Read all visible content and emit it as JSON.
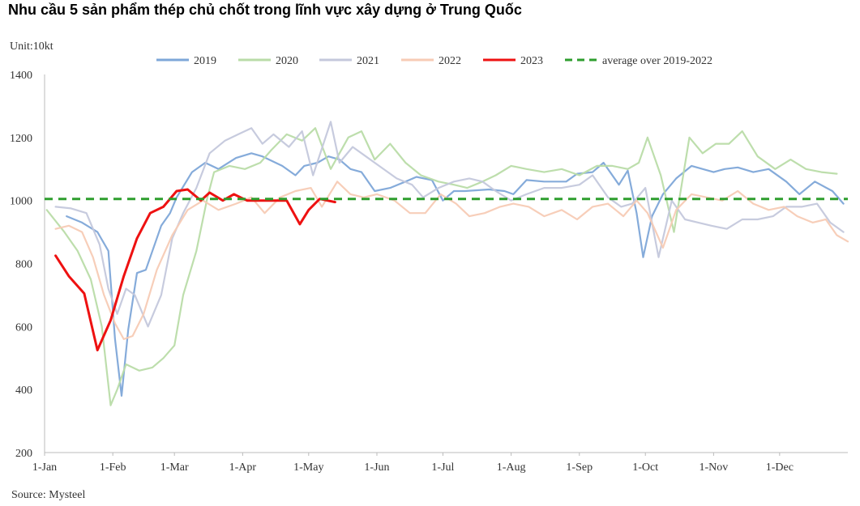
{
  "chart_data": {
    "type": "line",
    "title": "Nhu cầu 5 sản phẩm thép chủ chốt trong lĩnh vực xây dựng ở Trung Quốc",
    "unit_label": "Unit:10kt",
    "source": "Source: Mysteel",
    "ylim": [
      200,
      1400
    ],
    "yticks": [
      200,
      400,
      600,
      800,
      1000,
      1200,
      1400
    ],
    "xlim": [
      1,
      366
    ],
    "xticks": [
      {
        "label": "1-Jan",
        "day": 1
      },
      {
        "label": "1-Feb",
        "day": 32
      },
      {
        "label": "1-Mar",
        "day": 60
      },
      {
        "label": "1-Apr",
        "day": 91
      },
      {
        "label": "1-May",
        "day": 121
      },
      {
        "label": "1-Jun",
        "day": 152
      },
      {
        "label": "1-Jul",
        "day": 182
      },
      {
        "label": "1-Aug",
        "day": 213
      },
      {
        "label": "1-Sep",
        "day": 244
      },
      {
        "label": "1-Oct",
        "day": 274
      },
      {
        "label": "1-Nov",
        "day": 305
      },
      {
        "label": "1-Dec",
        "day": 335
      }
    ],
    "legend_position": "top",
    "grid": false,
    "average": {
      "name": "average over 2019-2022",
      "value": 1005,
      "color": "#2e9e2e"
    },
    "series": [
      {
        "name": "2019",
        "color": "#7ea7d8",
        "x": [
          11,
          18,
          25,
          30,
          33,
          36,
          39,
          43,
          47,
          54,
          58,
          61,
          68,
          74,
          80,
          88,
          95,
          100,
          109,
          115,
          119,
          125,
          130,
          135,
          140,
          145,
          151,
          158,
          165,
          170,
          177,
          182,
          187,
          192,
          203,
          210,
          214,
          220,
          228,
          238,
          243,
          250,
          255,
          262,
          266,
          270,
          273,
          277,
          282,
          288,
          295,
          305,
          310,
          316,
          323,
          330,
          338,
          344,
          351,
          359,
          364
        ],
        "y": [
          950,
          930,
          900,
          840,
          560,
          380,
          590,
          770,
          780,
          920,
          960,
          1010,
          1090,
          1120,
          1100,
          1135,
          1150,
          1140,
          1110,
          1080,
          1110,
          1120,
          1140,
          1130,
          1100,
          1090,
          1030,
          1040,
          1060,
          1075,
          1065,
          1000,
          1030,
          1030,
          1035,
          1030,
          1020,
          1065,
          1060,
          1060,
          1085,
          1090,
          1120,
          1050,
          1095,
          960,
          820,
          950,
          1020,
          1070,
          1110,
          1090,
          1100,
          1105,
          1090,
          1100,
          1060,
          1020,
          1060,
          1030,
          990
        ]
      },
      {
        "name": "2020",
        "color": "#b9dca8",
        "x": [
          2,
          10,
          16,
          22,
          27,
          31,
          34,
          38,
          44,
          50,
          55,
          60,
          64,
          70,
          75,
          78,
          85,
          92,
          99,
          104,
          111,
          118,
          124,
          131,
          139,
          145,
          151,
          158,
          165,
          172,
          180,
          187,
          193,
          200,
          206,
          213,
          220,
          228,
          236,
          244,
          252,
          259,
          266,
          271,
          275,
          281,
          287,
          294,
          300,
          306,
          312,
          318,
          325,
          333,
          340,
          347,
          354,
          361
        ],
        "y": [
          970,
          900,
          840,
          750,
          600,
          350,
          400,
          480,
          460,
          470,
          500,
          540,
          700,
          840,
          1010,
          1090,
          1110,
          1100,
          1120,
          1160,
          1210,
          1190,
          1230,
          1100,
          1200,
          1220,
          1130,
          1180,
          1120,
          1080,
          1060,
          1050,
          1040,
          1060,
          1080,
          1110,
          1100,
          1090,
          1100,
          1080,
          1110,
          1110,
          1100,
          1120,
          1200,
          1080,
          900,
          1200,
          1150,
          1180,
          1180,
          1220,
          1140,
          1100,
          1130,
          1100,
          1090,
          1085
        ]
      },
      {
        "name": "2021",
        "color": "#c4c8dc",
        "x": [
          6,
          13,
          20,
          26,
          30,
          34,
          38,
          42,
          48,
          54,
          59,
          64,
          70,
          76,
          83,
          89,
          95,
          100,
          105,
          112,
          118,
          123,
          131,
          135,
          141,
          147,
          153,
          161,
          168,
          173,
          180,
          187,
          194,
          200,
          206,
          213,
          220,
          228,
          236,
          244,
          250,
          257,
          263,
          268,
          274,
          280,
          286,
          292,
          298,
          304,
          311,
          318,
          325,
          332,
          338,
          345,
          352,
          358,
          364
        ],
        "y": [
          980,
          975,
          960,
          860,
          720,
          640,
          720,
          700,
          600,
          700,
          880,
          960,
          1040,
          1150,
          1190,
          1210,
          1230,
          1180,
          1210,
          1170,
          1220,
          1080,
          1250,
          1120,
          1170,
          1140,
          1110,
          1070,
          1050,
          1010,
          1040,
          1060,
          1070,
          1060,
          1030,
          1000,
          1020,
          1040,
          1040,
          1050,
          1080,
          1010,
          980,
          990,
          1040,
          820,
          1000,
          940,
          930,
          920,
          910,
          940,
          940,
          950,
          980,
          980,
          990,
          930,
          900
        ]
      },
      {
        "name": "2022",
        "color": "#f7cbb5",
        "x": [
          6,
          12,
          18,
          23,
          28,
          33,
          37,
          41,
          46,
          52,
          59,
          66,
          73,
          80,
          88,
          95,
          101,
          108,
          115,
          122,
          127,
          134,
          140,
          146,
          152,
          160,
          167,
          174,
          181,
          188,
          194,
          201,
          208,
          214,
          221,
          228,
          236,
          243,
          250,
          257,
          264,
          270,
          275,
          282,
          288,
          295,
          302,
          309,
          316,
          323,
          330,
          337,
          343,
          350,
          356,
          361,
          366
        ],
        "y": [
          910,
          920,
          900,
          820,
          700,
          610,
          560,
          570,
          640,
          780,
          890,
          970,
          1000,
          970,
          990,
          1010,
          960,
          1010,
          1030,
          1040,
          980,
          1060,
          1020,
          1010,
          1020,
          1000,
          960,
          960,
          1020,
          990,
          950,
          960,
          980,
          990,
          980,
          950,
          970,
          940,
          980,
          990,
          950,
          1000,
          960,
          850,
          970,
          1020,
          1010,
          1000,
          1030,
          990,
          970,
          980,
          950,
          930,
          940,
          890,
          870
        ]
      },
      {
        "name": "2023",
        "color": "#ee1111",
        "x": [
          6,
          12,
          19,
          25,
          31,
          37,
          43,
          49,
          55,
          61,
          66,
          72,
          76,
          82,
          87,
          93,
          97,
          104,
          111,
          117,
          121,
          126,
          133
        ],
        "y": [
          825,
          760,
          705,
          525,
          620,
          760,
          880,
          960,
          980,
          1030,
          1035,
          1000,
          1025,
          1000,
          1020,
          1000,
          1000,
          1000,
          1000,
          925,
          970,
          1005,
          995
        ]
      }
    ]
  }
}
